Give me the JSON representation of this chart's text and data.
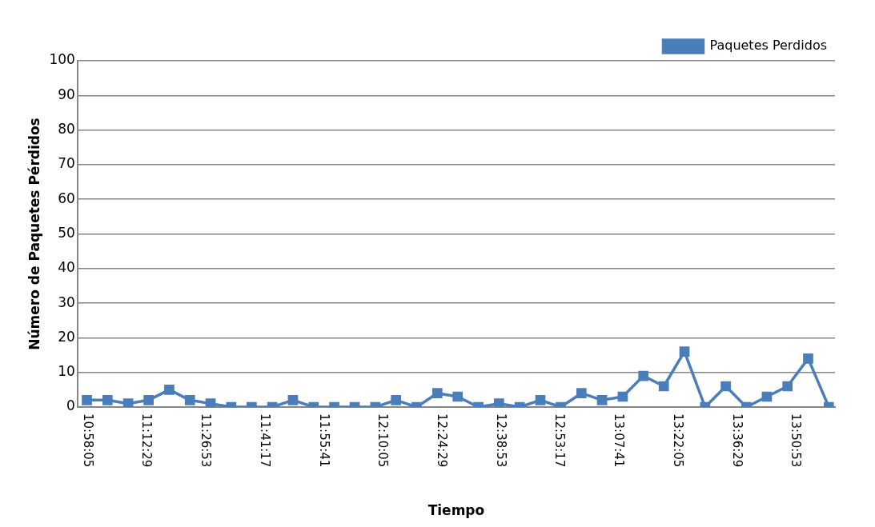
{
  "chart_data": {
    "type": "line",
    "xlabel": "Tiempo",
    "ylabel": "Número de Paquetes Pérdidos",
    "x": [
      10.968,
      11.052,
      11.136,
      11.219,
      11.303,
      11.387,
      11.471,
      11.555,
      11.638,
      11.722,
      11.806,
      11.89,
      11.974,
      12.057,
      12.141,
      12.225,
      12.309,
      12.393,
      12.476,
      12.56,
      12.644,
      12.728,
      12.812,
      12.895,
      12.979,
      13.063,
      13.147,
      13.231,
      13.314,
      13.398,
      13.482,
      13.566,
      13.65,
      13.733,
      13.817,
      13.901,
      13.985
    ],
    "series": [
      {
        "name": "Paquetes Perdidos",
        "color": "#4a7ebb",
        "values": [
          2,
          2,
          1,
          2,
          5,
          2,
          1,
          0,
          0,
          0,
          2,
          0,
          0,
          0,
          0,
          2,
          0,
          4,
          3,
          0,
          1,
          0,
          2,
          0,
          4,
          2,
          3,
          9,
          6,
          16,
          0,
          6,
          0,
          3,
          6,
          14,
          0
        ]
      }
    ],
    "xlim": [
      10.93,
      14.01
    ],
    "xticks": [
      {
        "value": 10.968,
        "label": "10:58:05"
      },
      {
        "value": 11.208,
        "label": "11:12:29"
      },
      {
        "value": 11.448,
        "label": "11:26:53"
      },
      {
        "value": 11.688,
        "label": "11:41:17"
      },
      {
        "value": 11.928,
        "label": "11:55:41"
      },
      {
        "value": 12.168,
        "label": "12:10:05"
      },
      {
        "value": 12.408,
        "label": "12:24:29"
      },
      {
        "value": 12.648,
        "label": "12:38:53"
      },
      {
        "value": 12.888,
        "label": "12:53:17"
      },
      {
        "value": 13.128,
        "label": "13:07:41"
      },
      {
        "value": 13.368,
        "label": "13:22:05"
      },
      {
        "value": 13.608,
        "label": "13:36:29"
      },
      {
        "value": 13.848,
        "label": "13:50:53"
      }
    ],
    "ylim": [
      0,
      100
    ],
    "yticks": [
      0,
      10,
      20,
      30,
      40,
      50,
      60,
      70,
      80,
      90,
      100
    ],
    "grid": "y",
    "legend": "top right",
    "marker": "square",
    "line_style": "solid"
  }
}
